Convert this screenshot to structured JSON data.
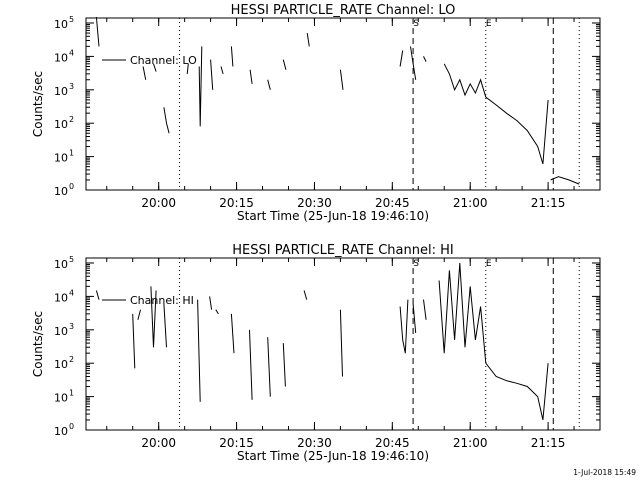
{
  "stamp": "1-Jul-2018 15:49",
  "charts": [
    {
      "id": "lo",
      "title": "HESSI PARTICLE_RATE Channel: LO",
      "xlabel": "Start Time (25-Jun-18 19:46:10)",
      "ylabel": "Counts/sec",
      "legend": "Channel: LO",
      "markers": {
        "s": "S",
        "e": "E"
      }
    },
    {
      "id": "hi",
      "title": "HESSI PARTICLE_RATE Channel: HI",
      "xlabel": "Start Time (25-Jun-18 19:46:10)",
      "ylabel": "Counts/sec",
      "legend": "Channel: HI",
      "markers": {
        "s": "S",
        "e": "E"
      }
    }
  ],
  "chart_data": [
    {
      "type": "line",
      "title": "HESSI PARTICLE_RATE Channel: LO",
      "xlabel": "Start Time (25-Jun-18 19:46:10)",
      "ylabel": "Counts/sec",
      "y_scale": "log",
      "xlim": [
        "19:46",
        "21:25"
      ],
      "ylim": [
        1,
        100000
      ],
      "x_ticks": [
        "20:00",
        "20:15",
        "20:30",
        "20:45",
        "21:00",
        "21:15"
      ],
      "y_ticks": [
        "10^0",
        "10^1",
        "10^2",
        "10^3",
        "10^4",
        "10^5"
      ],
      "legend_position": "top-left",
      "vertical_lines": [
        {
          "x": "20:04",
          "style": "dotted"
        },
        {
          "x": "20:49",
          "style": "dashed",
          "label": "S"
        },
        {
          "x": "21:03",
          "style": "dotted",
          "label": "E"
        },
        {
          "x": "21:16",
          "style": "dashed"
        },
        {
          "x": "21:21",
          "style": "dotted"
        }
      ],
      "series": [
        {
          "name": "Channel: LO",
          "segments": [
            [
              [
                "19:48",
                150000
              ],
              [
                "19:48.5",
                20000
              ]
            ],
            [
              [
                "19:57",
                5000
              ],
              [
                "19:57.5",
                2000
              ]
            ],
            [
              [
                "19:59",
                6000
              ],
              [
                "19:59.5",
                3500
              ]
            ],
            [
              [
                "20:01",
                300
              ],
              [
                "20:01.5",
                100
              ],
              [
                "20:02",
                50
              ]
            ],
            [
              [
                "20:05.5",
                3000
              ],
              [
                "20:05.7",
                6000
              ]
            ],
            [
              [
                "20:07.8",
                5000
              ],
              [
                "20:08",
                80
              ],
              [
                "20:08.3",
                20000
              ]
            ],
            [
              [
                "20:10",
                8000
              ],
              [
                "20:10.4",
                1000
              ]
            ],
            [
              [
                "20:12",
                5000
              ],
              [
                "20:12.4",
                3000
              ]
            ],
            [
              [
                "20:14",
                20000
              ],
              [
                "20:14.3",
                5000
              ]
            ],
            [
              [
                "20:17.6",
                4000
              ],
              [
                "20:18",
                1500
              ]
            ],
            [
              [
                "20:21",
                2000
              ],
              [
                "20:21.5",
                1000
              ]
            ],
            [
              [
                "20:24",
                8000
              ],
              [
                "20:24.5",
                4000
              ]
            ],
            [
              [
                "20:28.6",
                50000
              ],
              [
                "20:29",
                20000
              ]
            ],
            [
              [
                "20:35",
                4000
              ],
              [
                "20:35.5",
                1000
              ]
            ],
            [
              [
                "20:46.5",
                5000
              ],
              [
                "20:47",
                15000
              ]
            ],
            [
              [
                "20:48.5",
                20000
              ],
              [
                "20:49",
                6000
              ],
              [
                "20:49.5",
                2000
              ]
            ],
            [
              [
                "20:51",
                10000
              ],
              [
                "20:51.5",
                7000
              ]
            ],
            [
              [
                "20:55",
                6000
              ],
              [
                "20:56",
                3000
              ],
              [
                "20:57",
                1000
              ],
              [
                "20:58",
                2000
              ],
              [
                "20:59",
                700
              ],
              [
                "21:00",
                1500
              ],
              [
                "21:01",
                800
              ],
              [
                "21:02",
                2000
              ],
              [
                "21:03",
                600
              ]
            ],
            [
              [
                "21:03",
                600
              ],
              [
                "21:05",
                350
              ],
              [
                "21:07",
                200
              ],
              [
                "21:09",
                120
              ],
              [
                "21:11",
                60
              ],
              [
                "21:13",
                20
              ],
              [
                "21:14",
                6
              ],
              [
                "21:15",
                500
              ]
            ],
            [
              [
                "21:15.5",
                2
              ],
              [
                "21:17",
                2.5
              ],
              [
                "21:19",
                2
              ],
              [
                "21:21",
                1.5
              ]
            ]
          ]
        }
      ]
    },
    {
      "type": "line",
      "title": "HESSI PARTICLE_RATE Channel: HI",
      "xlabel": "Start Time (25-Jun-18 19:46:10)",
      "ylabel": "Counts/sec",
      "y_scale": "log",
      "xlim": [
        "19:46",
        "21:25"
      ],
      "ylim": [
        1,
        100000
      ],
      "x_ticks": [
        "20:00",
        "20:15",
        "20:30",
        "20:45",
        "21:00",
        "21:15"
      ],
      "y_ticks": [
        "10^0",
        "10^1",
        "10^2",
        "10^3",
        "10^4",
        "10^5"
      ],
      "legend_position": "top-left",
      "vertical_lines": [
        {
          "x": "20:04",
          "style": "dotted"
        },
        {
          "x": "20:49",
          "style": "dashed",
          "label": "S"
        },
        {
          "x": "21:03",
          "style": "dotted",
          "label": "E"
        },
        {
          "x": "21:16",
          "style": "dashed"
        },
        {
          "x": "21:21",
          "style": "dotted"
        }
      ],
      "series": [
        {
          "name": "Channel: HI",
          "segments": [
            [
              [
                "19:48",
                15000
              ],
              [
                "19:48.5",
                8000
              ]
            ],
            [
              [
                "19:55",
                3000
              ],
              [
                "19:55.4",
                70
              ]
            ],
            [
              [
                "19:56",
                2000
              ],
              [
                "19:56.5",
                4000
              ]
            ],
            [
              [
                "19:58.5",
                20000
              ],
              [
                "19:59",
                300
              ],
              [
                "19:59.5",
                15000
              ]
            ],
            [
              [
                "20:01",
                6000
              ],
              [
                "20:01.5",
                300
              ]
            ],
            [
              [
                "20:07.5",
                8000
              ],
              [
                "20:08",
                7
              ]
            ],
            [
              [
                "20:09.8",
                10000
              ],
              [
                "20:10.2",
                4000
              ]
            ],
            [
              [
                "20:11",
                4000
              ],
              [
                "20:11.5",
                3000
              ]
            ],
            [
              [
                "20:14",
                3000
              ],
              [
                "20:14.5",
                200
              ]
            ],
            [
              [
                "20:17.5",
                1000
              ],
              [
                "20:18",
                8
              ]
            ],
            [
              [
                "20:21",
                600
              ],
              [
                "20:21.5",
                10
              ]
            ],
            [
              [
                "20:24",
                400
              ],
              [
                "20:24.4",
                20
              ]
            ],
            [
              [
                "20:28",
                15000
              ],
              [
                "20:28.5",
                8000
              ]
            ],
            [
              [
                "20:35",
                4000
              ],
              [
                "20:35.4",
                40
              ]
            ],
            [
              [
                "20:46.5",
                5000
              ],
              [
                "20:47",
                500
              ],
              [
                "20:47.5",
                200
              ],
              [
                "20:48",
                8000
              ]
            ],
            [
              [
                "20:49",
                6000
              ],
              [
                "20:49.5",
                800
              ]
            ],
            [
              [
                "20:51",
                8000
              ],
              [
                "20:51.5",
                2000
              ]
            ],
            [
              [
                "20:54",
                30000
              ],
              [
                "20:55",
                200
              ],
              [
                "20:56",
                60000
              ],
              [
                "20:57",
                500
              ],
              [
                "20:58",
                100000
              ],
              [
                "20:59",
                300
              ],
              [
                "21:00",
                20000
              ],
              [
                "21:01",
                500
              ],
              [
                "21:02",
                5000
              ],
              [
                "21:03",
                100
              ]
            ],
            [
              [
                "21:03",
                100
              ],
              [
                "21:05",
                40
              ],
              [
                "21:07",
                30
              ],
              [
                "21:09",
                25
              ],
              [
                "21:11",
                20
              ],
              [
                "21:13",
                10
              ],
              [
                "21:14",
                2
              ],
              [
                "21:15",
                100
              ]
            ]
          ]
        }
      ]
    }
  ]
}
